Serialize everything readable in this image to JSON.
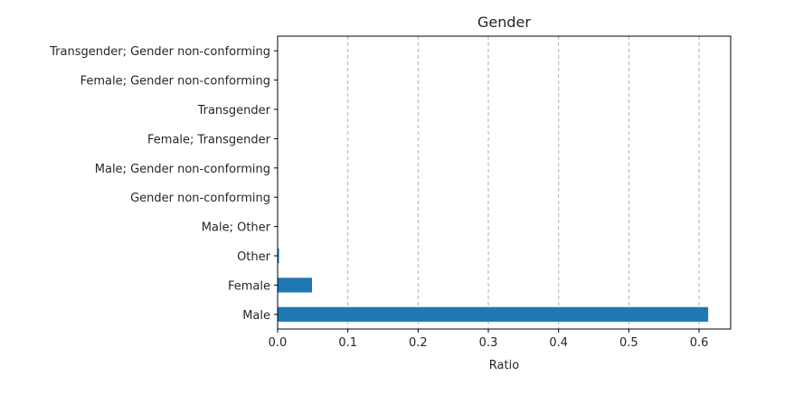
{
  "chart_data": {
    "type": "bar",
    "orientation": "horizontal",
    "title": "Gender",
    "xlabel": "Ratio",
    "ylabel": "",
    "xlim": [
      0,
      0.645
    ],
    "xticks": [
      0.0,
      0.1,
      0.2,
      0.3,
      0.4,
      0.5,
      0.6
    ],
    "xtick_labels": [
      "0.0",
      "0.1",
      "0.2",
      "0.3",
      "0.4",
      "0.5",
      "0.6"
    ],
    "grid": "x-dashed",
    "color": "#1f77b4",
    "categories": [
      "Male",
      "Female",
      "Other",
      "Male; Other",
      "Gender non-conforming",
      "Male; Gender non-conforming",
      "Female; Transgender",
      "Transgender",
      "Female; Gender non-conforming",
      "Transgender; Gender non-conforming"
    ],
    "values": [
      0.613,
      0.049,
      0.002,
      0.0005,
      0.0004,
      0.0003,
      0.0002,
      0.0002,
      0.0001,
      0.0001
    ]
  }
}
